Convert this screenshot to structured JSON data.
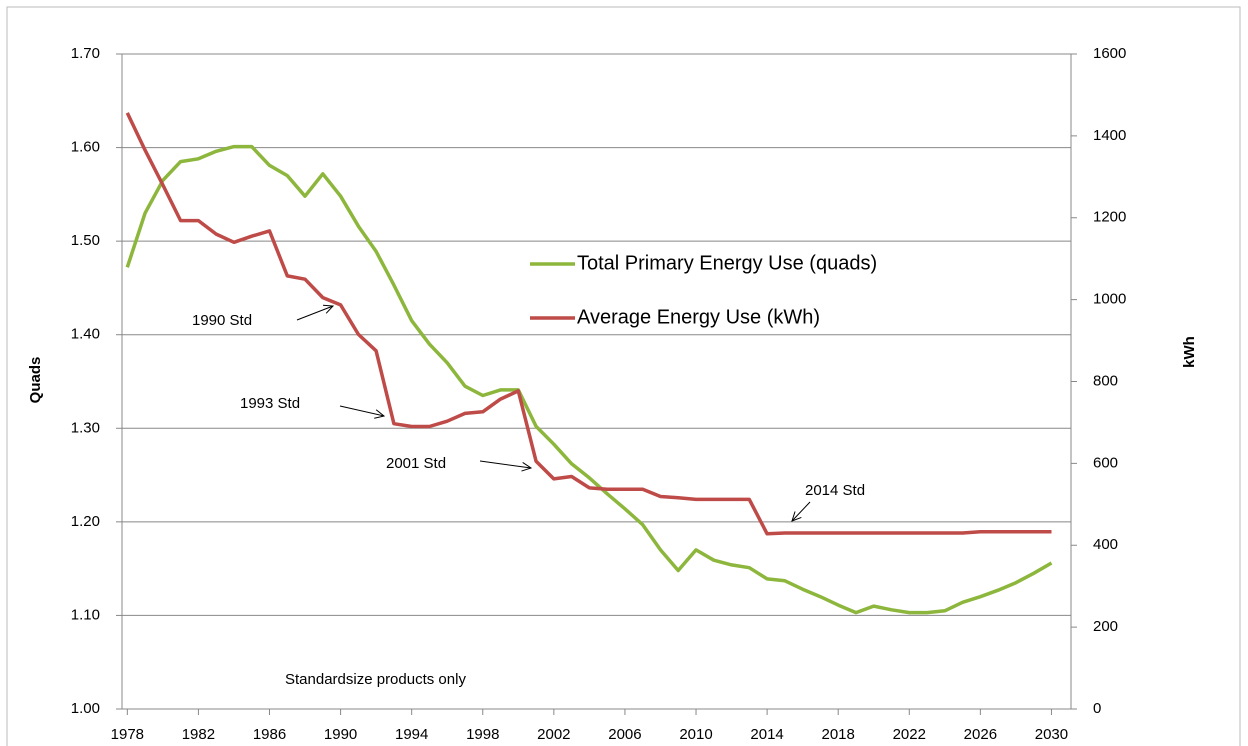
{
  "chart_data": {
    "type": "line",
    "x": [
      1978,
      1979,
      1980,
      1981,
      1982,
      1983,
      1984,
      1985,
      1986,
      1987,
      1988,
      1989,
      1990,
      1991,
      1992,
      1993,
      1994,
      1995,
      1996,
      1997,
      1998,
      1999,
      2000,
      2001,
      2002,
      2003,
      2004,
      2005,
      2006,
      2007,
      2008,
      2009,
      2010,
      2011,
      2012,
      2013,
      2014,
      2015,
      2016,
      2017,
      2018,
      2019,
      2020,
      2021,
      2022,
      2023,
      2024,
      2025,
      2026,
      2027,
      2028,
      2029,
      2030
    ],
    "xlim": [
      1977.7,
      2031.1
    ],
    "xticks": [
      1978,
      1982,
      1986,
      1990,
      1994,
      1998,
      2002,
      2006,
      2010,
      2014,
      2018,
      2022,
      2026,
      2030
    ],
    "ylabel": "Quads",
    "y2label": "kWh",
    "ylim": [
      1.0,
      1.7
    ],
    "yticks": [
      {
        "value": 1.0,
        "label": "1.00"
      },
      {
        "value": 1.1,
        "label": "1.10"
      },
      {
        "value": 1.2,
        "label": "1.20"
      },
      {
        "value": 1.3,
        "label": "1.30"
      },
      {
        "value": 1.4,
        "label": "1.40"
      },
      {
        "value": 1.5,
        "label": "1.50"
      },
      {
        "value": 1.6,
        "label": "1.60"
      },
      {
        "value": 1.7,
        "label": "1.70"
      }
    ],
    "y2lim": [
      0,
      1600
    ],
    "y2ticks": [
      0,
      200,
      400,
      600,
      800,
      1000,
      1200,
      1400,
      1600
    ],
    "grid": true,
    "series": [
      {
        "name": "Total Primary Energy Use (quads)",
        "color": "#8db63c",
        "values": [
          1.472,
          1.53,
          1.565,
          1.585,
          1.588,
          1.596,
          1.601,
          1.601,
          1.581,
          1.57,
          1.548,
          1.572,
          1.548,
          1.516,
          1.489,
          1.453,
          1.415,
          1.39,
          1.37,
          1.345,
          1.335,
          1.341,
          1.341,
          1.302,
          1.283,
          1.262,
          1.247,
          1.23,
          1.214,
          1.197,
          1.17,
          1.148,
          1.17,
          1.159,
          1.154,
          1.151,
          1.139,
          1.137,
          1.128,
          1.12,
          1.111,
          1.103,
          1.11,
          1.106,
          1.103,
          1.103,
          1.105,
          1.114,
          1.12,
          1.127,
          1.135,
          1.145,
          1.156
        ]
      },
      {
        "name": "Average Energy Use (kWh)",
        "color": "#be4b48",
        "axis": "y2",
        "values": [
          1456,
          1365,
          1280,
          1193,
          1193,
          1160,
          1140,
          1155,
          1168,
          1058,
          1050,
          1005,
          987,
          915,
          875,
          697,
          690,
          690,
          703,
          722,
          726,
          757,
          777,
          605,
          562,
          568,
          540,
          537,
          537,
          537,
          519,
          516,
          512,
          512,
          512,
          512,
          428,
          430,
          430,
          430,
          430,
          430,
          430,
          430,
          430,
          430,
          430,
          430,
          433,
          433,
          433,
          433,
          433
        ]
      }
    ],
    "annotations": [
      "1990 Std",
      "1993 Std",
      "2001 Std",
      "2014 Std",
      "Standardsize products only"
    ]
  }
}
